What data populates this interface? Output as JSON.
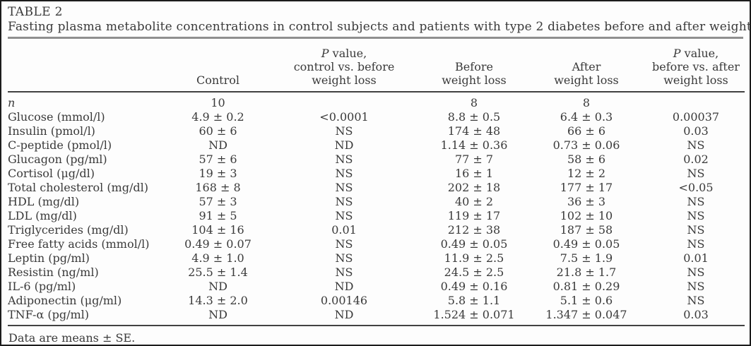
{
  "table": {
    "label": "TABLE 2",
    "caption": "Fasting plasma metabolite concentrations in control subjects and patients with type 2 diabetes before and after weight loss",
    "columns": {
      "control": "Control",
      "p_control_vs_before": {
        "p": "P",
        "rest": " value,",
        "line2": "control vs. before",
        "line3": "weight loss"
      },
      "before": {
        "line1": "Before",
        "line2": "weight loss"
      },
      "after": {
        "line1": "After",
        "line2": "weight loss"
      },
      "p_before_vs_after": {
        "p": "P",
        "rest": " value,",
        "line2": "before vs. after",
        "line3": "weight loss"
      }
    },
    "rows": [
      {
        "label": "n",
        "italic": true,
        "control": "10",
        "p1": "",
        "before": "8",
        "after": "8",
        "p2": ""
      },
      {
        "label": "Glucose (mmol/l)",
        "control": "4.9 ± 0.2",
        "p1": "<0.0001",
        "before": "8.8 ± 0.5",
        "after": "6.4 ± 0.3",
        "p2": "0.00037"
      },
      {
        "label": "Insulin (pmol/l)",
        "control": "60 ± 6",
        "p1": "NS",
        "before": "174 ± 48",
        "after": "66 ± 6",
        "p2": "0.03"
      },
      {
        "label": "C-peptide (pmol/l)",
        "control": "ND",
        "p1": "ND",
        "before": "1.14 ± 0.36",
        "after": "0.73 ± 0.06",
        "p2": "NS"
      },
      {
        "label": "Glucagon (pg/ml)",
        "control": "57 ± 6",
        "p1": "NS",
        "before": "77 ± 7",
        "after": "58 ± 6",
        "p2": "0.02"
      },
      {
        "label": "Cortisol (μg/dl)",
        "control": "19 ± 3",
        "p1": "NS",
        "before": "16 ± 1",
        "after": "12 ± 2",
        "p2": "NS"
      },
      {
        "label": "Total cholesterol (mg/dl)",
        "control": "168 ± 8",
        "p1": "NS",
        "before": "202 ± 18",
        "after": "177 ± 17",
        "p2": "<0.05"
      },
      {
        "label": "HDL (mg/dl)",
        "control": "57 ± 3",
        "p1": "NS",
        "before": "40 ± 2",
        "after": "36 ± 3",
        "p2": "NS"
      },
      {
        "label": "LDL (mg/dl)",
        "control": "91 ± 5",
        "p1": "NS",
        "before": "119 ± 17",
        "after": "102 ± 10",
        "p2": "NS"
      },
      {
        "label": "Triglycerides (mg/dl)",
        "control": "104 ± 16",
        "p1": "0.01",
        "before": "212 ± 38",
        "after": "187 ± 58",
        "p2": "NS"
      },
      {
        "label": "Free fatty acids (mmol/l)",
        "control": "0.49 ± 0.07",
        "p1": "NS",
        "before": "0.49 ± 0.05",
        "after": "0.49 ± 0.05",
        "p2": "NS"
      },
      {
        "label": "Leptin (pg/ml)",
        "control": "4.9 ± 1.0",
        "p1": "NS",
        "before": "11.9 ± 2.5",
        "after": "7.5 ± 1.9",
        "p2": "0.01"
      },
      {
        "label": "Resistin (ng/ml)",
        "control": "25.5 ± 1.4",
        "p1": "NS",
        "before": "24.5 ± 2.5",
        "after": "21.8 ± 1.7",
        "p2": "NS"
      },
      {
        "label": "IL-6 (pg/ml)",
        "control": "ND",
        "p1": "ND",
        "before": "0.49 ± 0.16",
        "after": "0.81 ± 0.29",
        "p2": "NS"
      },
      {
        "label": "Adiponectin (μg/ml)",
        "control": "14.3 ± 2.0",
        "p1": "0.00146",
        "before": "5.8 ± 1.1",
        "after": "5.1 ± 0.6",
        "p2": "NS"
      },
      {
        "label": "TNF-α (pg/ml)",
        "control": "ND",
        "p1": "ND",
        "before": "1.524 ± 0.071",
        "after": "1.347 ± 0.047",
        "p2": "0.03"
      }
    ],
    "footnote": "Data are means ± SE."
  }
}
